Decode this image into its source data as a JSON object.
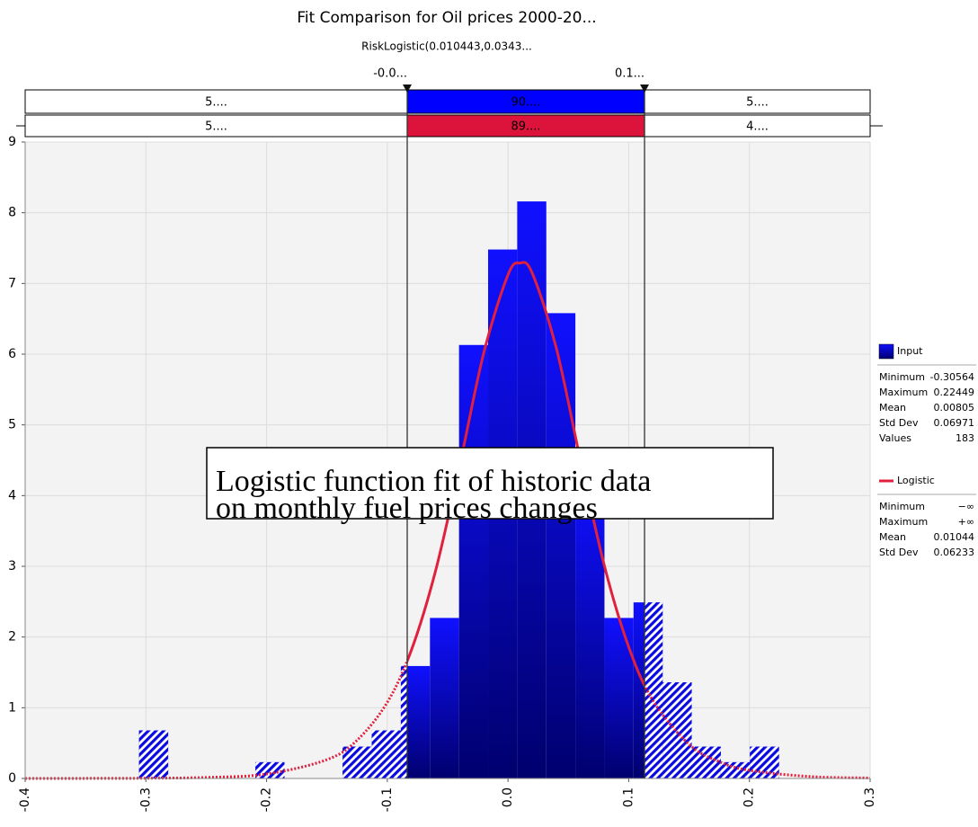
{
  "chart_data": {
    "type": "histogram",
    "title": "Fit Comparison for Oil prices 2000-20...",
    "subtitle": "RiskLogistic(0.010443,0.0343...",
    "bins": [
      -0.30564,
      -0.28154,
      -0.25745,
      -0.23335,
      -0.20925,
      -0.18516,
      -0.16106,
      -0.13696,
      -0.11286,
      -0.08877,
      -0.06467,
      -0.04057,
      -0.01648,
      0.00762,
      0.03172,
      0.05581,
      0.07991,
      0.10401,
      0.1281,
      0.1522,
      0.1763,
      0.20039,
      0.22449
    ],
    "series": [
      {
        "name": "Input",
        "color": "#0000ff",
        "values": [
          0.68,
          0,
          0,
          0,
          0.23,
          0,
          0,
          0.45,
          0.68,
          1.59,
          2.27,
          6.13,
          7.48,
          8.16,
          6.58,
          4.1,
          2.27,
          2.49,
          1.36,
          0.45,
          0.23,
          0.45
        ],
        "stats": [
          {
            "label": "Minimum",
            "value": -0.30564
          },
          {
            "label": "Maximum",
            "value": 0.22449
          },
          {
            "label": "Mean",
            "value": 0.00805
          },
          {
            "label": "Std Dev",
            "value": 0.06971
          },
          {
            "label": "Values",
            "value": 183
          }
        ]
      },
      {
        "name": "Logistic",
        "color": "#e0203c",
        "type": "line",
        "x": [
          -0.4,
          -0.35,
          -0.3,
          -0.25,
          -0.2,
          -0.15,
          -0.125,
          -0.1,
          -0.08,
          -0.06,
          -0.04,
          -0.02,
          0,
          0.01,
          0.02,
          0.04,
          0.06,
          0.08,
          0.1,
          0.12,
          0.15,
          0.175,
          0.2,
          0.25,
          0.3
        ],
        "values": [
          0.0002,
          0.0008,
          0.0034,
          0.0147,
          0.0629,
          0.266,
          0.541,
          1.077,
          1.817,
          2.937,
          4.431,
          6.024,
          7.123,
          7.288,
          7.149,
          6.087,
          4.502,
          2.997,
          1.859,
          1.103,
          0.482,
          0.237,
          0.115,
          0.027,
          0.0063
        ],
        "stats": [
          {
            "label": "Minimum",
            "value": "−∞"
          },
          {
            "label": "Maximum",
            "value": "+∞"
          },
          {
            "label": "Mean",
            "value": 0.01044
          },
          {
            "label": "Std Dev",
            "value": 0.06233
          }
        ]
      }
    ],
    "markers": [
      {
        "value": -0.0835,
        "label": "-0.0..."
      },
      {
        "value": 0.1131,
        "label": "0.1..."
      }
    ],
    "delimiter_rows": [
      {
        "labels": [
          "5....",
          "90....",
          "5...."
        ],
        "color": "#0000ff"
      },
      {
        "labels": [
          "5....",
          "89....",
          "4...."
        ],
        "color": "#dc143c"
      }
    ],
    "annotation": [
      "Logistic function fit of historic data",
      "on monthly fuel prices changes"
    ],
    "xlim": [
      -0.4,
      0.3
    ],
    "xticks": [
      -0.4,
      -0.3,
      -0.2,
      -0.1,
      {
        "value": 0,
        "label": "0.0"
      },
      0.1,
      0.2,
      0.3
    ],
    "ylim": [
      0,
      9
    ],
    "yticks": [
      0,
      1,
      2,
      3,
      4,
      5,
      6,
      7,
      8,
      9
    ],
    "grid": true
  }
}
